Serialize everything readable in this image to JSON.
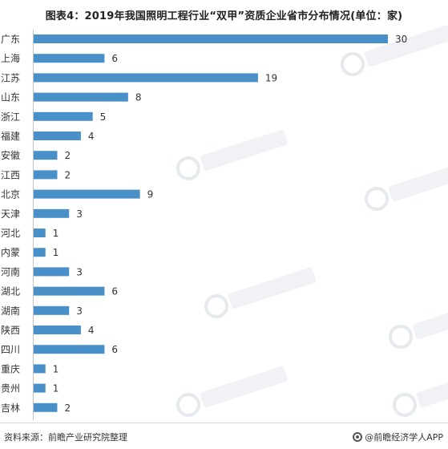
{
  "chart_data": {
    "type": "bar",
    "orientation": "horizontal",
    "title": "图表4：2019年我国照明工程行业“双甲”资质企业省市分布情况(单位：家)",
    "categories": [
      "广东",
      "上海",
      "江苏",
      "山东",
      "浙江",
      "福建",
      "安徽",
      "江西",
      "北京",
      "天津",
      "河北",
      "内蒙",
      "河南",
      "湖北",
      "湖南",
      "陕西",
      "四川",
      "重庆",
      "贵州",
      "吉林"
    ],
    "values": [
      30,
      6,
      19,
      8,
      5,
      4,
      2,
      2,
      9,
      3,
      1,
      1,
      3,
      6,
      3,
      4,
      6,
      1,
      1,
      2
    ],
    "xlim": [
      0,
      30
    ],
    "data_labels": true,
    "grid": false,
    "bar_color": "#4a90c8"
  },
  "source_text": "资料来源：前瞻产业研究院整理",
  "app_text": "@前瞻经济学人APP"
}
